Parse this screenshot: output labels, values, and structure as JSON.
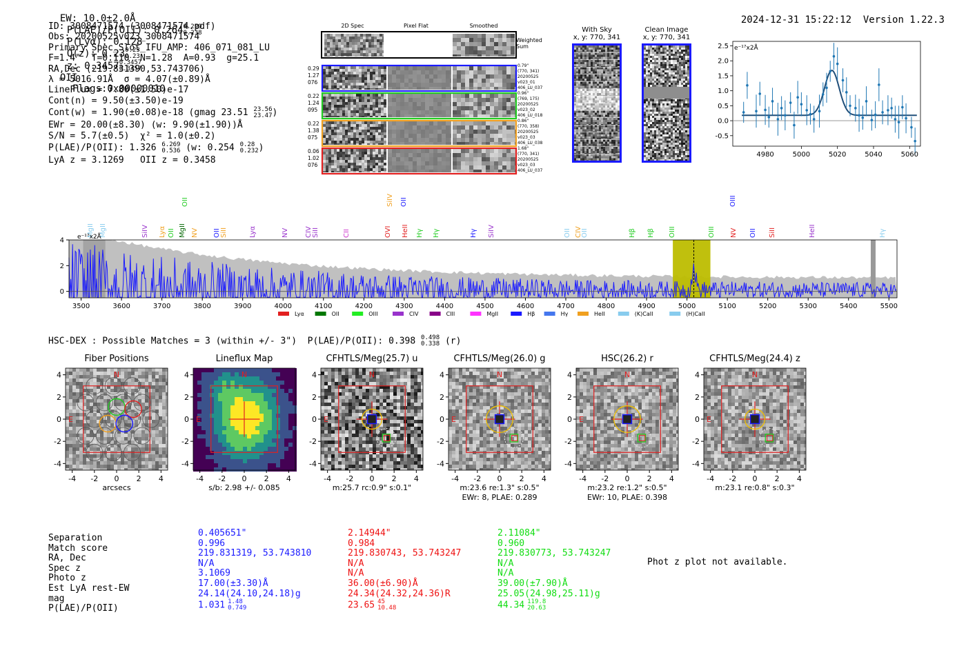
{
  "header": {
    "ew": "EW: 10.0±2.0Å",
    "plae": "P(LAE)/P(OII): 0.264",
    "plae_hi": "0.299",
    "plae_lo": "0.238",
    "plya": "P(Lyα): 0.128",
    "qz": "Q(z): 0.23",
    "qz_hi": "0.23",
    "qz_lo": "0.23",
    "z": "z: 0.3457",
    "z_hi": "0.3457",
    "z_lo": "0.3457",
    "z_line": "OII",
    "flags": "Flags:0x00000010",
    "datetime": "2024-12-31 15:22:12",
    "version": "Version 1.22.3"
  },
  "info": {
    "id": "ID: 3008471574 (3008471574.pdf)",
    "obs": "Obs: 20200525v023_3008471574",
    "slot": "Primary Spec_Slot_IFU_AMP: 406_071_081_LU",
    "fit": "F=1.4\"  T=0.110  N=1.28  A=0.93  g=25.1",
    "radec": "RA,Dec (219.831390,53.743706)",
    "lambda": "λ = 5016.91Å  σ = 4.07(±0.89)Å",
    "lineflux": "LineFlux = 7.80(±1.50)e-17",
    "contn": "Cont(n) = 9.50(±3.50)e-19",
    "contw": "Cont(w) = 1.90(±0.08)e-18 (gmag 23.51",
    "contw_hi": "23.56",
    "contw_lo": "23.47",
    "ewr": "EWr = 20.00(±8.30) (w: 9.90(±1.90))Å",
    "sn": "S/N = 5.7(±0.5)  χ² = 1.0(±0.2)",
    "plae_line": "P(LAE)/P(OII): 1.326",
    "plae_line_hi": "6.269",
    "plae_line_lo": "0.536",
    "plae_line_w": "(w: 0.254",
    "plae_line_w_hi": "0.28",
    "plae_line_w_lo": "0.232",
    "lya_z": "LyA z = 3.1269   OII z = 0.3458"
  },
  "cutouts": {
    "col_headers": [
      "2D Spec",
      "Pixel Flat",
      "Smoothed"
    ],
    "weighted_sum": "Weighted Sum",
    "rows": [
      {
        "left": [
          "0.29",
          "1.27",
          "076"
        ],
        "right": [
          "0.79\"",
          "(770, 341)",
          "20200525",
          "v023_01",
          "406_LU_037"
        ],
        "color": "#1a1aff"
      },
      {
        "left": [
          "0.22",
          "1.24",
          "095"
        ],
        "right": [
          "0.96\"",
          "(769, 175)",
          "20200525",
          "v023_02",
          "406_LU_018"
        ],
        "color": "#22cc22"
      },
      {
        "left": [
          "0.22",
          "1.38",
          "075"
        ],
        "right": [
          "0.86\"",
          "(770, 358)",
          "20200525",
          "v023_03",
          "406_LU_038"
        ],
        "color": "#f0a020"
      },
      {
        "left": [
          "0.06",
          "1.02",
          "076"
        ],
        "right": [
          "1.68\"",
          "(770, 341)",
          "20200525",
          "v023_03",
          "406_LU_037"
        ],
        "color": "#e22020"
      }
    ]
  },
  "sky": {
    "with_sky_title": "With Sky",
    "with_sky_xy": "x, y: 770, 341",
    "clean_title": "Clean Image",
    "clean_xy": "x, y: 770, 341"
  },
  "fit_plot": {
    "ylabel": "e⁻¹⁷x2Å",
    "x_ticks": [
      "4980",
      "5000",
      "5020",
      "5040",
      "5060"
    ],
    "y_ticks": [
      "2.5",
      "2.0",
      "1.5",
      "1.0",
      "0.5",
      "0.0",
      "-0.5"
    ]
  },
  "spectrum": {
    "ylabel": "e⁻¹⁷x2Å",
    "y_ticks": [
      "4",
      "2",
      "0"
    ],
    "x_ticks": [
      "3500",
      "3600",
      "3700",
      "3800",
      "3900",
      "4000",
      "4100",
      "4200",
      "4300",
      "4400",
      "4500",
      "4600",
      "4700",
      "4800",
      "4900",
      "5000",
      "5100",
      "5200",
      "5300",
      "5400",
      "5500"
    ],
    "line_labels": [
      {
        "t": "MgII",
        "x": 134,
        "c": "#88ccee",
        "row": 0
      },
      {
        "t": "MgII",
        "x": 152,
        "c": "#88ccee",
        "row": 0
      },
      {
        "t": "SiIV",
        "x": 213,
        "c": "#9933cc",
        "row": 0
      },
      {
        "t": "Lyα",
        "x": 238,
        "c": "#f0a020",
        "row": 0
      },
      {
        "t": "OII",
        "x": 251,
        "c": "#22cc22",
        "row": 0
      },
      {
        "t": "MgII",
        "x": 267,
        "c": "#006600",
        "row": 0
      },
      {
        "t": "NV",
        "x": 285,
        "c": "#f0a020",
        "row": 0
      },
      {
        "t": "OII",
        "x": 317,
        "c": "#1a1aff",
        "row": 0
      },
      {
        "t": "SiII",
        "x": 327,
        "c": "#f0a020",
        "row": 0
      },
      {
        "t": "Lyα",
        "x": 369,
        "c": "#9933cc",
        "row": 0
      },
      {
        "t": "NV",
        "x": 416,
        "c": "#9933cc",
        "row": 0
      },
      {
        "t": "CIV",
        "x": 450,
        "c": "#9933cc",
        "row": 0
      },
      {
        "t": "SiII",
        "x": 460,
        "c": "#9933cc",
        "row": 0
      },
      {
        "t": "CII",
        "x": 505,
        "c": "#cc33cc",
        "row": 0
      },
      {
        "t": "OVI",
        "x": 565,
        "c": "#e22020",
        "row": 0
      },
      {
        "t": "HeII",
        "x": 590,
        "c": "#e22020",
        "row": 0
      },
      {
        "t": "Hγ",
        "x": 611,
        "c": "#22cc22",
        "row": 0
      },
      {
        "t": "Hγ",
        "x": 635,
        "c": "#22cc22",
        "row": 0
      },
      {
        "t": "Hγ",
        "x": 689,
        "c": "#1a1aff",
        "row": 0
      },
      {
        "t": "SiIV",
        "x": 715,
        "c": "#9933cc",
        "row": 0
      },
      {
        "t": "OII",
        "x": 825,
        "c": "#88ccee",
        "row": 0
      },
      {
        "t": "CIV",
        "x": 841,
        "c": "#f0a020",
        "row": 0
      },
      {
        "t": "OII",
        "x": 850,
        "c": "#88ccee",
        "row": 0
      },
      {
        "t": "Hβ",
        "x": 919,
        "c": "#22cc22",
        "row": 0
      },
      {
        "t": "Hβ",
        "x": 946,
        "c": "#22cc22",
        "row": 0
      },
      {
        "t": "OIII",
        "x": 977,
        "c": "#22cc22",
        "row": 0
      },
      {
        "t": "OIII",
        "x": 1034,
        "c": "#22cc22",
        "row": 0
      },
      {
        "t": "NV",
        "x": 1066,
        "c": "#e22020",
        "row": 0
      },
      {
        "t": "OII",
        "x": 1094,
        "c": "#1a1aff",
        "row": 0
      },
      {
        "t": "SiII",
        "x": 1122,
        "c": "#e22020",
        "row": 0
      },
      {
        "t": "HeII",
        "x": 1180,
        "c": "#9933cc",
        "row": 0
      },
      {
        "t": "Hγ",
        "x": 1282,
        "c": "#88ccee",
        "row": 0
      },
      {
        "t": "OII",
        "x": 271,
        "c": "#22cc22",
        "row": 1
      },
      {
        "t": "SiIV",
        "x": 568,
        "c": "#f0a020",
        "row": 1
      },
      {
        "t": "OII",
        "x": 588,
        "c": "#1a1aff",
        "row": 1
      },
      {
        "t": "OIII",
        "x": 1065,
        "c": "#1a1aff",
        "row": 1
      }
    ],
    "legend": [
      {
        "t": "Lyα",
        "c": "#e22020"
      },
      {
        "t": "OII",
        "c": "#007700"
      },
      {
        "t": "OIII",
        "c": "#22ee22"
      },
      {
        "t": "CIV",
        "c": "#9933cc"
      },
      {
        "t": "CIII",
        "c": "#880088"
      },
      {
        "t": "MgII",
        "c": "#ff33ff"
      },
      {
        "t": "Hβ",
        "c": "#1a1aff"
      },
      {
        "t": "Hγ",
        "c": "#4477ee"
      },
      {
        "t": "HeII",
        "c": "#f0a020"
      },
      {
        "t": "(K)CaII",
        "c": "#88ccee"
      },
      {
        "t": "(H)CaII",
        "c": "#88ccee"
      }
    ]
  },
  "hsc": {
    "title": "HSC-DEX : Possible Matches = 3 (within +/- 3\")  P(LAE)/P(OII): 0.398",
    "plae_hi": "0.498",
    "plae_lo": "0.338",
    "band": "(r)"
  },
  "imaging": {
    "panels": [
      {
        "title": "Fiber Positions",
        "xlabel": "arcsecs",
        "sub": ""
      },
      {
        "title": "Lineflux Map",
        "xlabel": "s/b: 2.98 +/- 0.085",
        "sub": ""
      },
      {
        "title": "CFHTLS/Meg(25.7) u",
        "xlabel": "m:25.7 rc:0.9\"  s:0.1\"",
        "sub": ""
      },
      {
        "title": "CFHTLS/Meg(26.0) g",
        "xlabel": "m:23.6  re:1.3\"  s:0.5\"",
        "sub": "EWr: 8, PLAE: 0.289"
      },
      {
        "title": "HSC(26.2) r",
        "xlabel": "m:23.2  re:1.2\"  s:0.5\"",
        "sub": "EWr: 10, PLAE: 0.398"
      },
      {
        "title": "CFHTLS/Meg(24.4) z",
        "xlabel": "m:23.1  re:0.8\"  s:0.3\"",
        "sub": ""
      }
    ],
    "ticks": [
      "4",
      "2",
      "0",
      "-2",
      "-4"
    ],
    "north": "N",
    "east": "E"
  },
  "matches": {
    "labels": [
      "Separation",
      "Match score",
      "RA, Dec",
      "Spec z",
      "Photo z",
      "Est LyA rest-EW",
      "mag",
      "P(LAE)/P(OII)"
    ],
    "columns": [
      {
        "color": "#1a1aff",
        "vals": [
          "0.405651\"",
          "0.996",
          "219.831319, 53.743810",
          "N/A",
          "3.1069",
          "17.00(±3.30)Å",
          "24.14(24.10,24.18)g",
          "1.031"
        ],
        "plae_hi": "1.48",
        "plae_lo": "0.749"
      },
      {
        "color": "#ee1111",
        "vals": [
          "2.14944\"",
          "0.984",
          "219.830743, 53.743247",
          "N/A",
          "N/A",
          "36.00(±6.90)Å",
          "24.34(24.32,24.36)R",
          "23.65"
        ],
        "plae_hi": "45",
        "plae_lo": "10.48"
      },
      {
        "color": "#11dd11",
        "vals": [
          "2.11084\"",
          "0.960",
          "219.830773, 53.743247",
          "N/A",
          "N/A",
          "39.00(±7.90)Å",
          "25.05(24.98,25.11)g",
          "44.34"
        ],
        "plae_hi": "119.8",
        "plae_lo": "20.63"
      }
    ],
    "photz_note": "Phot z plot not available."
  },
  "chart_data": [
    {
      "type": "scatter",
      "title": "",
      "xlabel": "",
      "ylabel": "e⁻¹⁷x2Å",
      "xlim": [
        4962,
        5066
      ],
      "ylim": [
        -0.85,
        2.65
      ],
      "x": [
        4968,
        4970,
        4975,
        4977,
        4980,
        4982,
        4984,
        4987,
        4989,
        4991,
        4994,
        4996,
        4998,
        5000,
        5003,
        5005,
        5007,
        5010,
        5012,
        5014,
        5016,
        5018,
        5020,
        5023,
        5025,
        5027,
        5030,
        5032,
        5034,
        5036,
        5039,
        5041,
        5043,
        5045,
        5048,
        5050,
        5052,
        5054,
        5056,
        5058,
        5061,
        5063
      ],
      "y": [
        0.28,
        1.18,
        0.32,
        0.9,
        0.36,
        0.12,
        0.65,
        0.05,
        0.42,
        0.18,
        0.6,
        -0.15,
        0.78,
        0.55,
        0.35,
        0.22,
        0.05,
        0.32,
        0.88,
        1.1,
        1.65,
        2.15,
        1.9,
        1.35,
        0.95,
        0.5,
        0.42,
        0.18,
        0.1,
        0.65,
        0.02,
        0.2,
        1.2,
        0.28,
        0.35,
        0.42,
        0.05,
        -0.05,
        0.45,
        0.08,
        -0.22,
        -0.68
      ],
      "fit": {
        "model": "gaussian",
        "center": 5016.9,
        "sigma": 4.07,
        "amplitude": 1.5,
        "baseline": 0.18
      }
    },
    {
      "type": "line",
      "title": "",
      "xlabel": "",
      "ylabel": "e⁻¹⁷x2Å",
      "xlim": [
        3470,
        5520
      ],
      "ylim": [
        -0.5,
        4
      ],
      "series": [
        {
          "name": "spectrum",
          "color": "#1a1aff"
        },
        {
          "name": "error",
          "color": "#bdbdbd"
        }
      ],
      "highlight_range": [
        4965,
        5058
      ],
      "line_marker": 5016.9
    }
  ]
}
